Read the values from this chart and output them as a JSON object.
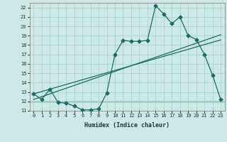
{
  "title": "",
  "xlabel": "Humidex (Indice chaleur)",
  "ylabel": "",
  "background_color": "#cce9e5",
  "grid_color": "#aad4cf",
  "line_color": "#1a6b60",
  "xlim": [
    -0.5,
    23.5
  ],
  "ylim": [
    11,
    22.5
  ],
  "xticks": [
    0,
    1,
    2,
    3,
    4,
    5,
    6,
    7,
    8,
    9,
    10,
    11,
    12,
    13,
    14,
    15,
    16,
    17,
    18,
    19,
    20,
    21,
    22,
    23
  ],
  "yticks": [
    11,
    12,
    13,
    14,
    15,
    16,
    17,
    18,
    19,
    20,
    21,
    22
  ],
  "main_y": [
    12.8,
    12.2,
    13.3,
    11.9,
    11.8,
    11.5,
    11.1,
    11.1,
    11.2,
    12.9,
    17.0,
    18.5,
    18.4,
    18.4,
    18.5,
    22.2,
    21.3,
    20.3,
    21.0,
    19.0,
    18.6,
    17.0,
    14.8,
    12.2
  ],
  "linear1_y": [
    12.8,
    13.05,
    13.3,
    13.55,
    13.8,
    14.05,
    14.3,
    14.55,
    14.8,
    15.05,
    15.3,
    15.55,
    15.8,
    16.05,
    16.3,
    16.55,
    16.8,
    17.05,
    17.3,
    17.55,
    17.8,
    18.05,
    18.3,
    18.55
  ],
  "linear2_y": [
    12.2,
    12.5,
    12.8,
    13.1,
    13.4,
    13.7,
    14.0,
    14.3,
    14.6,
    14.9,
    15.2,
    15.5,
    15.8,
    16.1,
    16.4,
    16.7,
    17.0,
    17.3,
    17.6,
    17.9,
    18.2,
    18.5,
    18.8,
    19.1
  ],
  "hline_y": 12.0,
  "marker_size": 2.5,
  "linewidth": 0.9
}
